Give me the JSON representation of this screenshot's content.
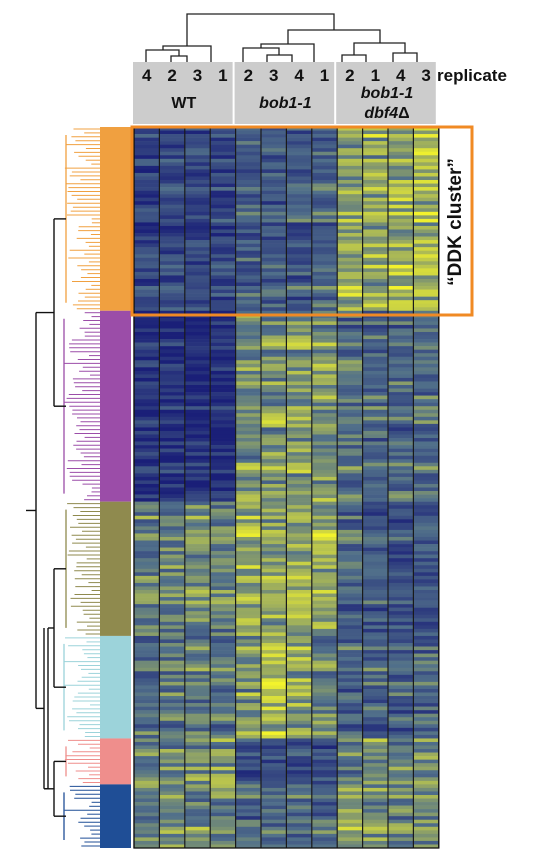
{
  "chart_data": {
    "type": "heatmap",
    "replicate_label": "replicate",
    "annotation": "“DDK cluster”",
    "groups": [
      {
        "name_parts": [
          {
            "text": "WT",
            "italic": false
          }
        ],
        "replicates": [
          "4",
          "2",
          "3",
          "1"
        ]
      },
      {
        "name_parts": [
          {
            "text": "bob1-1",
            "italic": true
          }
        ],
        "replicates": [
          "2",
          "3",
          "4",
          "1"
        ]
      },
      {
        "name_parts": [
          {
            "text": "bob1-1",
            "italic": true
          }
        ],
        "name_parts_2": [
          {
            "text": "dbf4",
            "italic": true
          },
          {
            "text": "Δ",
            "italic": false
          }
        ],
        "replicates": [
          "2",
          "1",
          "4",
          "3"
        ]
      }
    ],
    "row_clusters": [
      {
        "color": "#f0a040",
        "rows": 52,
        "profile": [
          -0.55,
          -0.55,
          -0.55,
          -0.55,
          -0.3,
          -0.3,
          -0.3,
          -0.2,
          0.35,
          0.4,
          0.45,
          0.55
        ]
      },
      {
        "color": "#9b4da8",
        "rows": 54,
        "profile": [
          -0.75,
          -0.8,
          -0.85,
          -0.8,
          0.25,
          0.3,
          0.25,
          0.3,
          -0.05,
          -0.1,
          -0.15,
          -0.1
        ]
      },
      {
        "color": "#8f8a4e",
        "rows": 38,
        "profile": [
          0.1,
          0.15,
          0.2,
          0.15,
          0.45,
          0.4,
          0.5,
          0.45,
          -0.15,
          -0.25,
          -0.35,
          -0.3
        ]
      },
      {
        "color": "#9cd3da",
        "rows": 29,
        "profile": [
          -0.1,
          -0.05,
          0.0,
          0.05,
          0.25,
          0.6,
          0.45,
          0.15,
          -0.15,
          -0.2,
          -0.25,
          -0.2
        ]
      },
      {
        "color": "#ef8e8c",
        "rows": 13,
        "profile": [
          0.05,
          0.1,
          0.15,
          0.2,
          -0.55,
          -0.5,
          -0.5,
          -0.55,
          0.1,
          0.15,
          0.05,
          0.1
        ]
      },
      {
        "color": "#1f4e96",
        "rows": 18,
        "profile": [
          0.15,
          0.15,
          0.2,
          0.2,
          -0.15,
          -0.15,
          -0.05,
          -0.1,
          0.25,
          0.2,
          0.15,
          0.2
        ]
      }
    ],
    "color_scale": {
      "low": "#1a1f78",
      "mid": "#51708a",
      "high": "#f3f32c"
    },
    "highlight_color": "#f08a24",
    "header_color": "#cccccc"
  }
}
